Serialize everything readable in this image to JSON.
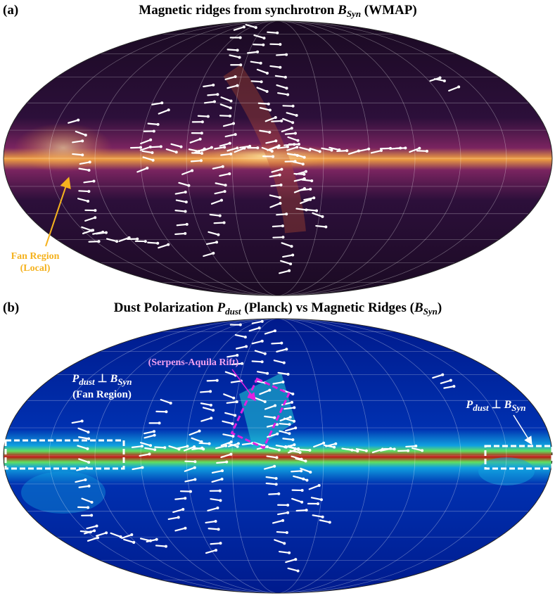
{
  "panels": [
    {
      "label": "(a)",
      "title": [
        {
          "t": "Magnetic ridges from synchrotron "
        },
        {
          "t": "B",
          "sub": "Syn"
        },
        {
          "t": " (WMAP)"
        }
      ],
      "annotations": [
        {
          "lines": [
            "Fan Region",
            "(Local)"
          ]
        }
      ]
    },
    {
      "label": "(b)",
      "title": [
        {
          "t": "Dust Polarization "
        },
        {
          "t": "P",
          "sub": "dust"
        },
        {
          "t": " (Planck) vs Magnetic Ridges ("
        },
        {
          "t": "B",
          "sub": "Syn"
        },
        {
          "t": ")"
        }
      ],
      "annotations": [
        {
          "lines": [
            "(Serpens-Aquila Rift)"
          ]
        },
        {
          "formula": [
            {
              "t": "P",
              "sub": "dust"
            },
            {
              "t": " ⊥ "
            },
            {
              "t": "B",
              "sub": "Syn"
            }
          ],
          "lines": [
            "(Fan Region)"
          ]
        },
        {
          "formula": [
            {
              "t": "P",
              "sub": "dust"
            },
            {
              "t": " ⊥ "
            },
            {
              "t": "B",
              "sub": "Syn"
            }
          ]
        }
      ]
    }
  ]
}
